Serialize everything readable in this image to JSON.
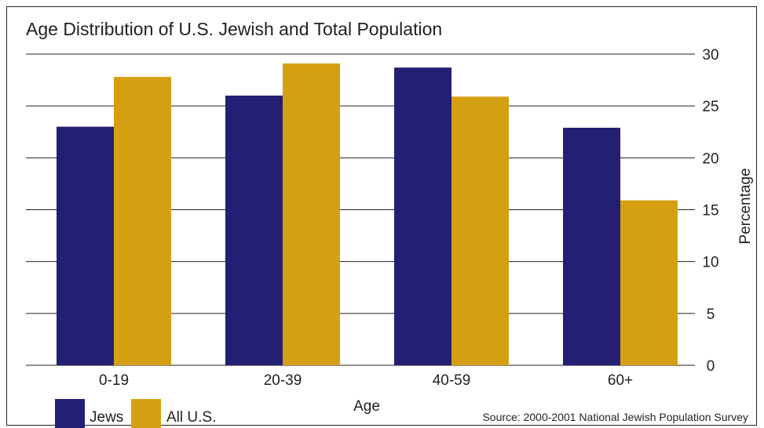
{
  "chart_data": {
    "type": "bar",
    "title": "Age Distribution of U.S. Jewish and Total Population",
    "xlabel": "Age",
    "ylabel": "Percentage",
    "ylim": [
      0,
      30
    ],
    "yticks": [
      0,
      5,
      10,
      15,
      20,
      25,
      30
    ],
    "grid": true,
    "y_axis_position": "right",
    "legend_position": "bottom-left",
    "categories": [
      "0-19",
      "20-39",
      "40-59",
      "60+"
    ],
    "series": [
      {
        "name": "Jews",
        "color": "#231f73",
        "values": [
          23.0,
          26.0,
          28.7,
          22.9
        ]
      },
      {
        "name": "All U.S.",
        "color": "#d4a012",
        "values": [
          27.8,
          29.1,
          25.9,
          15.9
        ]
      }
    ],
    "source": "Source: 2000-2001 National Jewish Population Survey"
  }
}
